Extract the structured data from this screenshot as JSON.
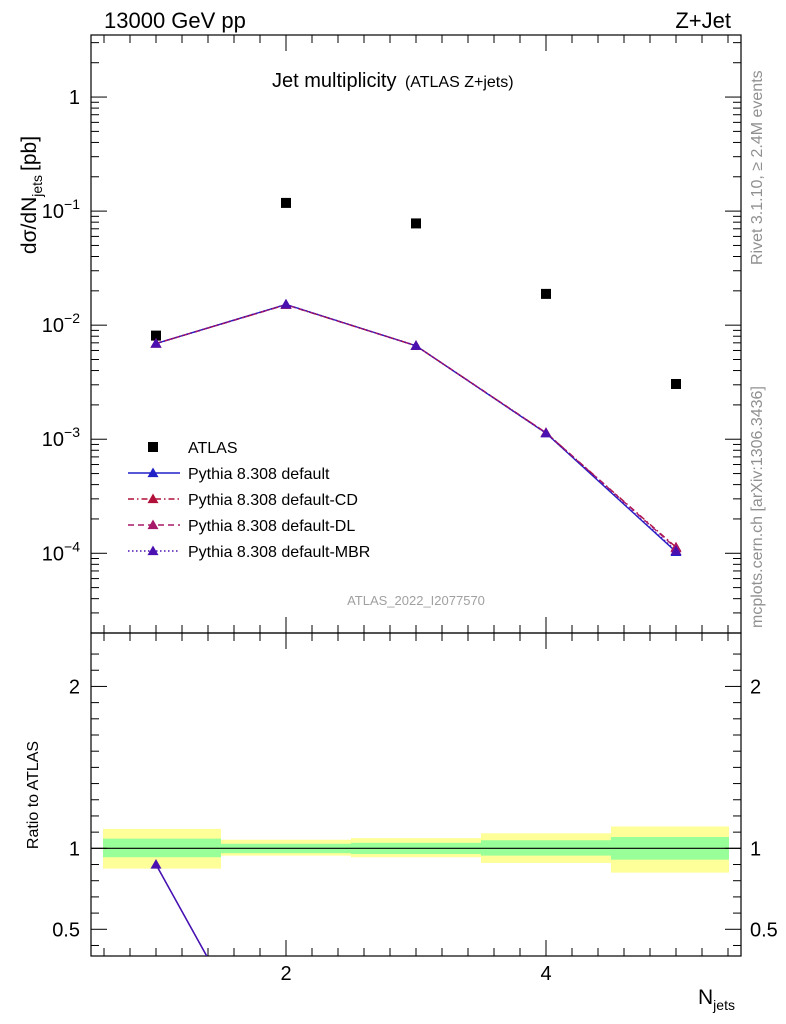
{
  "header": {
    "left": "13000 GeV pp",
    "right": "Z+Jet"
  },
  "side_text": {
    "upper": "Rivet 3.1.10, ≥ 2.4M events",
    "lower": "mcplots.cern.ch [arXiv:1306.3436]"
  },
  "watermark": "ATLAS_2022_I2077570",
  "chart_data": [
    {
      "type": "scatter",
      "title": "Jet multiplicity",
      "subtitle": "(ATLAS Z+jets)",
      "ylabel": "dσ/dN",
      "ylabel_sub": "jets",
      "ylabel_unit": "[pb]",
      "xlabel": "N",
      "xlabel_sub": "jets",
      "yscale": "log",
      "ylim": [
        2e-05,
        3.5
      ],
      "xlim": [
        0.5,
        5.5
      ],
      "y_tick_labels": [
        "1",
        "10",
        "10",
        "10",
        "10"
      ],
      "y_tick_exponents": [
        "",
        "−1",
        "−2",
        "−3",
        "−4"
      ],
      "legend_position": "lower-left",
      "series": [
        {
          "name": "ATLAS",
          "x": [
            1,
            2,
            3,
            4,
            5
          ],
          "y": [
            0.0081,
            0.118,
            0.078,
            0.0188,
            0.00305
          ],
          "color": "#000000",
          "marker": "square",
          "line": "none"
        },
        {
          "name": "Pythia 8.308 default",
          "x": [
            1,
            2,
            3,
            4,
            5
          ],
          "y": [
            0.0069,
            0.0152,
            0.0066,
            0.00113,
            0.000103
          ],
          "color": "#2020c8",
          "marker": "triangle",
          "line": "solid"
        },
        {
          "name": "Pythia 8.308 default-CD",
          "x": [
            1,
            2,
            3,
            4,
            5
          ],
          "y": [
            0.0069,
            0.0151,
            0.0066,
            0.00114,
            0.000113
          ],
          "color": "#b0103a",
          "marker": "triangle",
          "line": "dashdot"
        },
        {
          "name": "Pythia 8.308 default-DL",
          "x": [
            1,
            2,
            3,
            4,
            5
          ],
          "y": [
            0.0069,
            0.0151,
            0.0066,
            0.00114,
            0.000111
          ],
          "color": "#a8186a",
          "marker": "triangle",
          "line": "dashed"
        },
        {
          "name": "Pythia 8.308 default-MBR",
          "x": [
            1,
            2,
            3,
            4,
            5
          ],
          "y": [
            0.0069,
            0.0152,
            0.0066,
            0.00113,
            0.000105
          ],
          "color": "#4a10b0",
          "marker": "triangle",
          "line": "dotted"
        }
      ]
    },
    {
      "type": "line",
      "ylabel": "Ratio to ATLAS",
      "xlabel": "N",
      "xlabel_sub": "jets",
      "ylim": [
        0.335,
        2.33
      ],
      "xlim": [
        0.5,
        5.5
      ],
      "x_tick_labels": [
        "2",
        "4"
      ],
      "y_tick_labels": [
        "0.5",
        "1",
        "2"
      ],
      "band_bins": [
        [
          0.5,
          1.5
        ],
        [
          1.5,
          2.5
        ],
        [
          2.5,
          3.5
        ],
        [
          3.5,
          4.5
        ],
        [
          4.5,
          5.5
        ]
      ],
      "band_inner": [
        [
          0.945,
          1.06
        ],
        [
          0.97,
          1.028
        ],
        [
          0.965,
          1.034
        ],
        [
          0.955,
          1.05
        ],
        [
          0.93,
          1.07
        ]
      ],
      "band_outer": [
        [
          0.875,
          1.12
        ],
        [
          0.955,
          1.053
        ],
        [
          0.945,
          1.063
        ],
        [
          0.91,
          1.093
        ],
        [
          0.85,
          1.135
        ]
      ],
      "ratio_series": [
        {
          "name": "Pythia 8.308 default",
          "x": [
            1,
            1.39
          ],
          "y": [
            0.9,
            0.335
          ],
          "color": "#2020c8"
        },
        {
          "name": "Pythia 8.308 default-MBR",
          "x": [
            1,
            1.39
          ],
          "y": [
            0.9,
            0.335
          ],
          "color": "#4a10b0"
        }
      ]
    }
  ]
}
